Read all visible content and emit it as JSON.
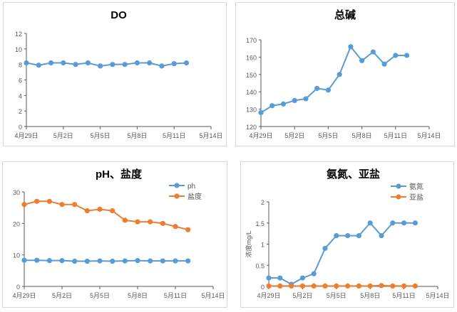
{
  "chart_data": [
    {
      "type": "line",
      "title": "DO",
      "xlabel": "",
      "ylabel": "",
      "x": [
        "04-29",
        "04-30",
        "05-01",
        "05-02",
        "05-03",
        "05-04",
        "05-05",
        "05-06",
        "05-07",
        "05-08",
        "05-09",
        "05-10",
        "05-11",
        "05-12"
      ],
      "xlim": [
        "04-29",
        "05-14"
      ],
      "xticks": [
        "04-29",
        "05-02",
        "05-05",
        "05-08",
        "05-11",
        "05-14"
      ],
      "xtick_labels": [
        "4月29日",
        "5月2日",
        "5月5日",
        "5月8日",
        "5月11日",
        "5月14日"
      ],
      "ylim": [
        0,
        12
      ],
      "yticks": [
        0,
        2,
        4,
        6,
        8,
        10,
        12
      ],
      "grid": false,
      "legend": "none",
      "series": [
        {
          "values": [
            8.2,
            7.9,
            8.2,
            8.2,
            8.0,
            8.2,
            7.8,
            8.0,
            8.0,
            8.2,
            8.2,
            7.8,
            8.1,
            8.2
          ],
          "color": "#5b9bd5"
        }
      ]
    },
    {
      "type": "line",
      "title": "总碱",
      "xlabel": "",
      "ylabel": "",
      "x": [
        "04-29",
        "04-30",
        "05-01",
        "05-02",
        "05-03",
        "05-04",
        "05-05",
        "05-06",
        "05-07",
        "05-08",
        "05-09",
        "05-10",
        "05-11",
        "05-12"
      ],
      "xlim": [
        "04-29",
        "05-14"
      ],
      "xticks": [
        "04-29",
        "05-02",
        "05-05",
        "05-08",
        "05-11",
        "05-14"
      ],
      "xtick_labels": [
        "4月29日",
        "5月2日",
        "5月5日",
        "5月8日",
        "5月11日",
        "5月14日"
      ],
      "ylim": [
        120,
        170
      ],
      "yticks": [
        120,
        130,
        140,
        150,
        160,
        170
      ],
      "grid": false,
      "legend": "none",
      "series": [
        {
          "values": [
            128,
            132,
            133,
            135,
            136,
            142,
            141,
            150,
            166,
            158,
            163,
            156,
            161,
            161
          ],
          "color": "#5b9bd5"
        }
      ]
    },
    {
      "type": "line",
      "title": "pH、盐度",
      "xlabel": "",
      "ylabel": "",
      "x": [
        "04-29",
        "04-30",
        "05-01",
        "05-02",
        "05-03",
        "05-04",
        "05-05",
        "05-06",
        "05-07",
        "05-08",
        "05-09",
        "05-10",
        "05-11",
        "05-12"
      ],
      "xlim": [
        "04-29",
        "05-14"
      ],
      "xticks": [
        "04-29",
        "05-02",
        "05-05",
        "05-08",
        "05-11",
        "05-14"
      ],
      "xtick_labels": [
        "4月29日",
        "5月2日",
        "5月5日",
        "5月8日",
        "5月11日",
        "5月14日"
      ],
      "ylim": [
        0,
        30
      ],
      "yticks": [
        0,
        10,
        20,
        30
      ],
      "grid": false,
      "legend": "top-right",
      "series": [
        {
          "name": "ph",
          "values": [
            8.3,
            8.3,
            8.2,
            8.2,
            8.0,
            8.0,
            8.1,
            8.0,
            8.1,
            8.2,
            8.1,
            8.1,
            8.1,
            8.1
          ],
          "color": "#5b9bd5"
        },
        {
          "name": "盐度",
          "values": [
            26,
            27,
            27,
            26,
            26,
            24,
            24.5,
            24,
            21,
            20.5,
            20.5,
            20,
            19,
            18
          ],
          "color": "#ed7d31"
        }
      ]
    },
    {
      "type": "line",
      "title": "氨氮、亚盐",
      "xlabel": "",
      "ylabel": "浓度mg/L",
      "x": [
        "04-29",
        "04-30",
        "05-01",
        "05-02",
        "05-03",
        "05-04",
        "05-05",
        "05-06",
        "05-07",
        "05-08",
        "05-09",
        "05-10",
        "05-11",
        "05-12"
      ],
      "xlim": [
        "04-29",
        "05-14"
      ],
      "xticks": [
        "04-29",
        "05-02",
        "05-05",
        "05-08",
        "05-11",
        "05-14"
      ],
      "xtick_labels": [
        "4月29日",
        "5月2日",
        "5月5日",
        "5月8日",
        "5月11日",
        "5月14日"
      ],
      "ylim": [
        0,
        2
      ],
      "yticks": [
        0,
        0.5,
        1,
        1.5,
        2
      ],
      "grid": false,
      "legend": "top-right",
      "series": [
        {
          "name": "氨氮",
          "values": [
            0.2,
            0.2,
            0.05,
            0.2,
            0.3,
            0.9,
            1.2,
            1.2,
            1.2,
            1.5,
            1.2,
            1.5,
            1.5,
            1.5
          ],
          "color": "#5b9bd5"
        },
        {
          "name": "亚盐",
          "values": [
            0.01,
            0.01,
            0.01,
            0.01,
            0.01,
            0.01,
            0.01,
            0.01,
            0.01,
            0.01,
            0.02,
            0.01,
            0.01,
            0.01
          ],
          "color": "#ed7d31"
        }
      ]
    }
  ]
}
